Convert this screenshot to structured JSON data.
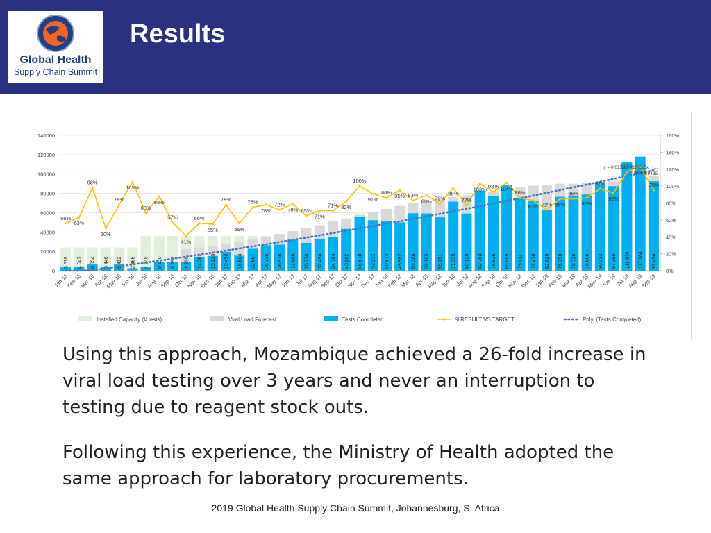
{
  "slide": {
    "title": "Results",
    "logo": {
      "line1": "Global Health",
      "line2": "Supply Chain Summit"
    },
    "paragraphs": [
      "Using this approach, Mozambique achieved a 26-fold increase in viral load testing over 3 years and never an interruption to testing due to reagent stock outs.",
      "Following this experience, the Ministry of Health adopted the same approach for laboratory procurements."
    ],
    "footer": "2019 Global Health Supply Chain Summit, Johannesburg, S. Africa"
  },
  "colors": {
    "header_bg": "#2b3181",
    "capacity": "#e2efd9",
    "forecast": "#d9d9d9",
    "tests": "#00b0f0",
    "pct_line": "#ffc000",
    "trend": "#4472c4"
  },
  "chart_data": {
    "type": "bar",
    "title": "",
    "categories": [
      "Jan-16",
      "Feb-16",
      "Mar-16",
      "Apr-16",
      "May-16",
      "Jun-16",
      "Jul-16",
      "Aug-16",
      "Sep-16",
      "Oct-16",
      "Nov-16",
      "Dec-16",
      "Jan-17",
      "Feb-17",
      "Mar-17",
      "Apr-17",
      "May-17",
      "Jun-17",
      "Jul-17",
      "Aug-17",
      "Sep-17",
      "Oct-17",
      "Nov-17",
      "Dec-17",
      "Jan-18",
      "Feb-18",
      "Mar-18",
      "Apr-18",
      "May-18",
      "Jun-18",
      "Jul-18",
      "Aug-18",
      "Sep-18",
      "Oct-18",
      "Nov-18",
      "Dec-18",
      "Jan-19",
      "Feb-19",
      "Mar-19",
      "Apr-19",
      "May-19",
      "Jun-19",
      "Jul-19",
      "Aug-19",
      "Sep-19"
    ],
    "series": [
      {
        "name": "Installed Capacity (# tests)",
        "type": "bar",
        "values": [
          24000,
          24000,
          24000,
          24000,
          24000,
          24000,
          36000,
          36000,
          36000,
          36000,
          36000,
          36000,
          36000,
          36000,
          36000,
          36000,
          36000,
          36000,
          36000,
          36000,
          36000,
          36000,
          36000,
          36000,
          36000,
          36000,
          36000,
          36000,
          36000,
          36000,
          36000,
          36000,
          36000,
          36000,
          36000,
          36000,
          36000,
          36000,
          36000,
          36000,
          36000,
          36000,
          36000,
          36000,
          36000
        ]
      },
      {
        "name": "Viral Load Forecast",
        "type": "bar",
        "values": [
          null,
          null,
          null,
          null,
          null,
          null,
          null,
          null,
          null,
          22000,
          24000,
          26000,
          28000,
          30000,
          32000,
          35000,
          38000,
          41000,
          44000,
          47000,
          51000,
          54000,
          58000,
          61000,
          64000,
          67000,
          70000,
          72000,
          74000,
          76000,
          78000,
          80000,
          82000,
          84000,
          86000,
          88000,
          89000,
          90000,
          90000,
          91000,
          92000,
          93000,
          94000,
          96000,
          98000
        ]
      },
      {
        "name": "Tests Completed",
        "type": "bar",
        "values": [
          3518,
          4047,
          6354,
          3446,
          6412,
          2456,
          4248,
          9120,
          8792,
          8998,
          14302,
          15120,
          19456,
          15504,
          22687,
          26336,
          26976,
          32088,
          28770,
          32494,
          34764,
          43262,
          55570,
          52232,
          50973,
          49982,
          59388,
          59185,
          55151,
          71399,
          59120,
          82753,
          76826,
          88889,
          75011,
          72478,
          62829,
          76398,
          76736,
          78806,
          90212,
          87395,
          111938,
          117984,
          92494
        ],
        "labels": [
          "3 518",
          "4 047",
          "6 354",
          "3 446",
          "6 412",
          "2 456",
          "4 248",
          "9 120",
          "8 792",
          "8 998",
          "14 302",
          "15 120",
          "19 456",
          "15 504",
          "22 687",
          "26 336",
          "26 976",
          "32 088",
          "28 770",
          "32 494",
          "34 764",
          "43 262",
          "55 570",
          "52 232",
          "50 973",
          "49 982",
          "59 388",
          "59 185",
          "55 151",
          "71 399",
          "59 120",
          "82 753",
          "76 826",
          "88 889",
          "75 011",
          "72 478",
          "62 829",
          "76 398",
          "76 736",
          "78 806",
          "90 212",
          "87 395",
          "111 938",
          "117 984",
          "92 494"
        ]
      },
      {
        "name": "%RESULT VS TARGET",
        "type": "line",
        "axis": "right",
        "values": [
          56,
          63,
          98,
          50,
          78,
          105,
          68,
          88,
          57,
          41,
          56,
          55,
          78,
          56,
          75,
          78,
          72,
          79,
          65,
          71,
          71,
          82,
          100,
          91,
          86,
          95,
          83,
          89,
          79,
          98,
          77,
          103,
          93,
          104,
          86,
          83,
          72,
          85,
          85,
          86,
          97,
          92,
          117,
          123,
          95
        ]
      },
      {
        "name": "Poly. (Tests Completed)",
        "type": "dotted-trend"
      }
    ],
    "pct_labels": [
      {
        "i": 0,
        "t": "56%"
      },
      {
        "i": 1,
        "t": "63%"
      },
      {
        "i": 2,
        "t": "98%"
      },
      {
        "i": 3,
        "t": "50%"
      },
      {
        "i": 4,
        "t": "78%"
      },
      {
        "i": 5,
        "t": "105%"
      },
      {
        "i": 6,
        "t": "68%"
      },
      {
        "i": 7,
        "t": "88%"
      },
      {
        "i": 8,
        "t": "57%"
      },
      {
        "i": 9,
        "t": "41%"
      },
      {
        "i": 10,
        "t": "56%"
      },
      {
        "i": 11,
        "t": "55%"
      },
      {
        "i": 12,
        "t": "78%"
      },
      {
        "i": 13,
        "t": "56%"
      },
      {
        "i": 14,
        "t": "75%"
      },
      {
        "i": 15,
        "t": "78%"
      },
      {
        "i": 16,
        "t": "72%"
      },
      {
        "i": 17,
        "t": "79%"
      },
      {
        "i": 18,
        "t": "65%"
      },
      {
        "i": 19,
        "t": "71%"
      },
      {
        "i": 20,
        "t": "71%"
      },
      {
        "i": 21,
        "t": "82%"
      },
      {
        "i": 22,
        "t": "100%"
      },
      {
        "i": 23,
        "t": "91%"
      },
      {
        "i": 24,
        "t": "86%"
      },
      {
        "i": 25,
        "t": "95%"
      },
      {
        "i": 26,
        "t": "83%"
      },
      {
        "i": 27,
        "t": "89%"
      },
      {
        "i": 28,
        "t": "79%"
      },
      {
        "i": 29,
        "t": "98%"
      },
      {
        "i": 30,
        "t": "77%"
      },
      {
        "i": 31,
        "t": "103%"
      },
      {
        "i": 32,
        "t": "93%"
      },
      {
        "i": 33,
        "t": "104%"
      },
      {
        "i": 34,
        "t": "86%"
      },
      {
        "i": 35,
        "t": "83%"
      },
      {
        "i": 36,
        "t": "72%"
      },
      {
        "i": 37,
        "t": "85%"
      },
      {
        "i": 38,
        "t": "85%"
      },
      {
        "i": 39,
        "t": "86%"
      },
      {
        "i": 40,
        "t": "97%"
      },
      {
        "i": 41,
        "t": "92%"
      },
      {
        "i": 42,
        "t": "117%"
      },
      {
        "i": 43,
        "t": "123%"
      },
      {
        "i": 44,
        "t": "95%"
      }
    ],
    "left_axis": {
      "ylim": [
        0,
        140000
      ],
      "ticks": [
        "0",
        "20000",
        "40000",
        "60000",
        "80000",
        "100000",
        "120000",
        "140000"
      ]
    },
    "right_axis": {
      "ylim": [
        0,
        160
      ],
      "ticks": [
        "0%",
        "20%",
        "40%",
        "60%",
        "80%",
        "100%",
        "120%",
        "140%",
        "160%"
      ]
    },
    "trend_equation": [
      "y = 0.0156x² - 1262.5x + ...",
      "R² = 0.9485"
    ],
    "legend": {
      "position": "bottom",
      "entries": [
        "Installed Capacity (# tests)",
        "Viral Load Forecast",
        "Tests Completed",
        "%RESULT VS TARGET",
        "Poly. (Tests Completed)"
      ]
    }
  }
}
